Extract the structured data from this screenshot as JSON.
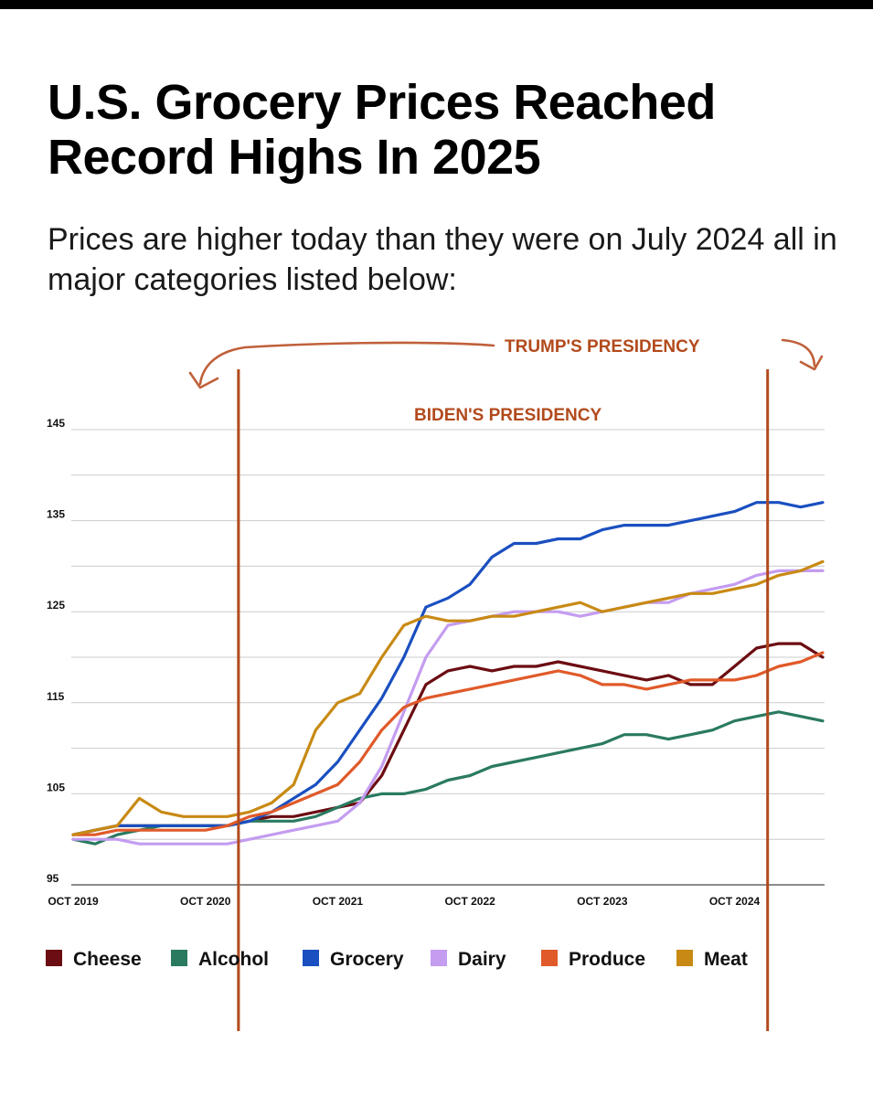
{
  "header": {
    "title": "U.S. Grocery Prices Reached Record Highs In 2025",
    "subtitle": "Prices are higher today than they were on July 2024 all in major categories listed below:"
  },
  "annotations": {
    "trump": "TRUMP'S PRESIDENCY",
    "biden": "BIDEN'S PRESIDENCY",
    "color": "#b24a1c"
  },
  "chart_data": {
    "type": "line",
    "title": "U.S. Grocery Prices Reached Record Highs In 2025",
    "subtitle": "Prices are higher today than they were on July 2024 all in major categories listed below:",
    "xlabel": "",
    "ylabel": "",
    "ylim": [
      95,
      145
    ],
    "yticks": [
      95,
      105,
      115,
      125,
      135,
      145
    ],
    "xticks": [
      "OCT 2019",
      "OCT 2020",
      "OCT 2021",
      "OCT 2022",
      "OCT 2023",
      "OCT 2024"
    ],
    "xlim": [
      "2019-10",
      "2025-06"
    ],
    "grid": true,
    "legend_position": "bottom",
    "markers": [
      {
        "label": "BIDEN'S PRESIDENCY",
        "date": "2021-01"
      },
      {
        "label": "TRUMP'S PRESIDENCY",
        "date": "2025-01"
      }
    ],
    "x": [
      "2019-10",
      "2019-12",
      "2020-02",
      "2020-04",
      "2020-06",
      "2020-08",
      "2020-10",
      "2020-12",
      "2021-02",
      "2021-04",
      "2021-06",
      "2021-08",
      "2021-10",
      "2021-12",
      "2022-02",
      "2022-04",
      "2022-06",
      "2022-08",
      "2022-10",
      "2022-12",
      "2023-02",
      "2023-04",
      "2023-06",
      "2023-08",
      "2023-10",
      "2023-12",
      "2024-02",
      "2024-04",
      "2024-06",
      "2024-08",
      "2024-10",
      "2024-12",
      "2025-02",
      "2025-04",
      "2025-06"
    ],
    "series": [
      {
        "name": "Cheese",
        "color": "#6b0d12",
        "values": [
          100.5,
          101,
          101.5,
          101.5,
          101.5,
          101.5,
          101.5,
          101.5,
          102,
          102.5,
          102.5,
          103,
          103.5,
          104,
          107,
          112,
          117,
          118.5,
          119,
          118.5,
          119,
          119,
          119.5,
          119,
          118.5,
          118,
          117.5,
          118,
          117,
          117,
          119,
          121,
          121.5,
          121.5,
          120
        ]
      },
      {
        "name": "Alcohol",
        "color": "#2a7a60",
        "values": [
          100,
          99.5,
          100.5,
          101,
          101.5,
          101.5,
          101.5,
          101.5,
          102,
          102,
          102,
          102.5,
          103.5,
          104.5,
          105,
          105,
          105.5,
          106.5,
          107,
          108,
          108.5,
          109,
          109.5,
          110,
          110.5,
          111.5,
          111.5,
          111,
          111.5,
          112,
          113,
          113.5,
          114,
          113.5,
          113
        ]
      },
      {
        "name": "Grocery",
        "color": "#1a4fc0",
        "values": [
          100.5,
          101,
          101.5,
          101.5,
          101.5,
          101.5,
          101.5,
          101.5,
          102,
          103,
          104.5,
          106,
          108.5,
          112,
          115.5,
          120,
          125.5,
          126.5,
          128,
          131,
          132.5,
          132.5,
          133,
          133,
          134,
          134.5,
          134.5,
          134.5,
          135,
          135.5,
          136,
          137,
          137,
          136.5,
          137
        ]
      },
      {
        "name": "Dairy",
        "color": "#c49cf0",
        "values": [
          100,
          100,
          100,
          99.5,
          99.5,
          99.5,
          99.5,
          99.5,
          100,
          100.5,
          101,
          101.5,
          102,
          104,
          108,
          114,
          120,
          123.5,
          124,
          124.5,
          125,
          125,
          125,
          124.5,
          125,
          125.5,
          126,
          126,
          127,
          127.5,
          128,
          129,
          129.5,
          129.5,
          129.5
        ]
      },
      {
        "name": "Produce",
        "color": "#e05a2a",
        "values": [
          100.5,
          100.5,
          101,
          101,
          101,
          101,
          101,
          101.5,
          102.5,
          103,
          104,
          105,
          106,
          108.5,
          112,
          114.5,
          115.5,
          116,
          116.5,
          117,
          117.5,
          118,
          118.5,
          118,
          117,
          117,
          116.5,
          117,
          117.5,
          117.5,
          117.5,
          118,
          119,
          119.5,
          120.5
        ]
      },
      {
        "name": "Meat",
        "color": "#c88a14",
        "values": [
          100.5,
          101,
          101.5,
          104.5,
          103,
          102.5,
          102.5,
          102.5,
          103,
          104,
          106,
          112,
          115,
          116,
          120,
          123.5,
          124.5,
          124,
          124,
          124.5,
          124.5,
          125,
          125.5,
          126,
          125,
          125.5,
          126,
          126.5,
          127,
          127,
          127.5,
          128,
          129,
          129.5,
          130.5
        ]
      }
    ]
  }
}
